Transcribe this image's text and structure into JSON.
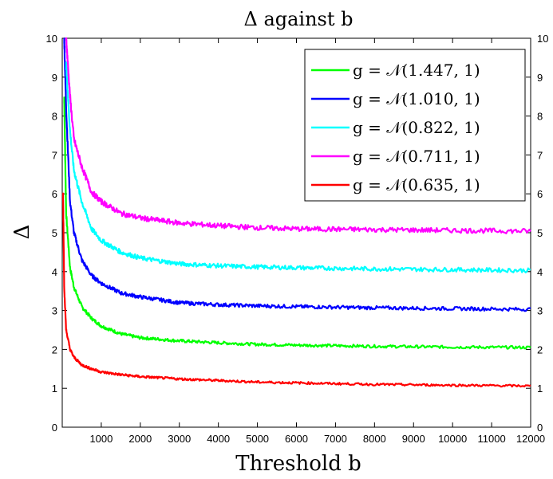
{
  "chart_data": {
    "type": "line",
    "title": "Δ against b",
    "xlabel": "Threshold b",
    "ylabel": "Δ",
    "xlim": [
      0,
      12000
    ],
    "ylim": [
      0,
      10
    ],
    "x_ticks": [
      1000,
      2000,
      3000,
      4000,
      5000,
      6000,
      7000,
      8000,
      9000,
      10000,
      11000,
      12000
    ],
    "y_ticks": [
      0,
      1,
      2,
      3,
      4,
      5,
      6,
      7,
      8,
      9,
      10
    ],
    "right_axis_ticks": [
      0,
      1,
      2,
      3,
      4,
      5,
      6,
      7,
      8,
      9,
      10
    ],
    "grid": false,
    "legend_position": "top-right",
    "series": [
      {
        "name": "g = 𝒩(1.447, 1)",
        "color": "#00ff00",
        "x": [
          50,
          100,
          200,
          300,
          500,
          750,
          1000,
          1500,
          2000,
          3000,
          4000,
          5000,
          6000,
          8000,
          10000,
          12000
        ],
        "y": [
          8.5,
          5.5,
          4.1,
          3.6,
          3.1,
          2.8,
          2.6,
          2.4,
          2.3,
          2.22,
          2.17,
          2.13,
          2.11,
          2.08,
          2.06,
          2.05
        ]
      },
      {
        "name": "g = 𝒩(1.010, 1)",
        "color": "#0000ff",
        "x": [
          50,
          100,
          200,
          300,
          500,
          750,
          1000,
          1500,
          2000,
          3000,
          4000,
          5000,
          6000,
          8000,
          10000,
          12000
        ],
        "y": [
          10,
          8.2,
          5.8,
          5.0,
          4.3,
          3.9,
          3.7,
          3.45,
          3.35,
          3.2,
          3.15,
          3.12,
          3.1,
          3.07,
          3.05,
          3.03
        ]
      },
      {
        "name": "g = 𝒩(0.822, 1)",
        "color": "#00ffff",
        "x": [
          100,
          200,
          300,
          500,
          750,
          1000,
          1500,
          2000,
          3000,
          4000,
          5000,
          6000,
          8000,
          10000,
          12000
        ],
        "y": [
          9.3,
          7.6,
          6.6,
          5.8,
          5.1,
          4.8,
          4.5,
          4.35,
          4.2,
          4.15,
          4.12,
          4.1,
          4.07,
          4.05,
          4.03
        ]
      },
      {
        "name": "g = 𝒩(0.711, 1)",
        "color": "#ff00ff",
        "x": [
          100,
          200,
          300,
          500,
          750,
          1000,
          1500,
          2000,
          3000,
          4000,
          5000,
          6000,
          8000,
          10000,
          12000
        ],
        "y": [
          10,
          8.5,
          7.4,
          6.7,
          6.05,
          5.8,
          5.5,
          5.38,
          5.25,
          5.18,
          5.13,
          5.1,
          5.08,
          5.06,
          5.04
        ]
      },
      {
        "name": "g = 𝒩(0.635, 1)",
        "color": "#ff0000",
        "x": [
          20,
          50,
          100,
          200,
          300,
          500,
          750,
          1000,
          1500,
          2000,
          3000,
          4000,
          5000,
          6000,
          8000,
          10000,
          12000
        ],
        "y": [
          6.0,
          3.6,
          2.5,
          2.0,
          1.8,
          1.6,
          1.5,
          1.42,
          1.35,
          1.3,
          1.24,
          1.2,
          1.16,
          1.14,
          1.1,
          1.08,
          1.06
        ]
      }
    ]
  }
}
